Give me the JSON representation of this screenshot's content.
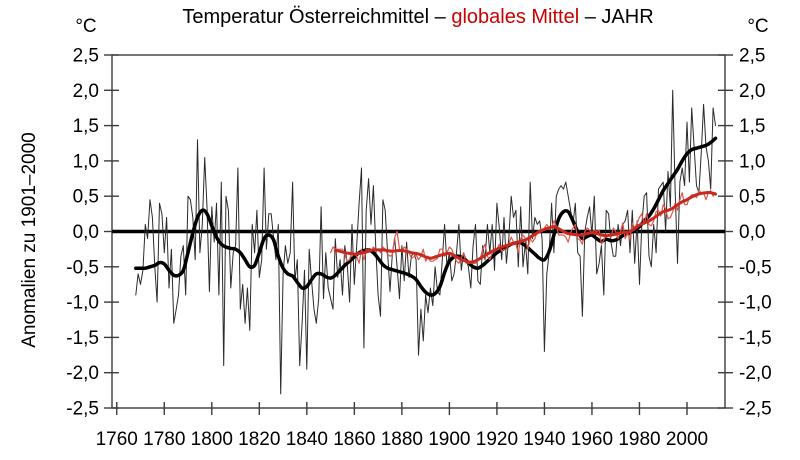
{
  "title": {
    "part1": "Temperatur Österreichmittel – ",
    "part2_red": "globales Mittel",
    "part3": " – JAHR"
  },
  "axes": {
    "unit_left": "°C",
    "unit_right": "°C",
    "y_axis_title": "Anomalien zu 1901–2000",
    "y_tick_labels": [
      "2,5",
      "2,0",
      "1,5",
      "1,0",
      "0,5",
      "0,0",
      "-0,5",
      "-1,0",
      "-1,5",
      "-2,0",
      "-2,5"
    ],
    "y_tick_values": [
      2.5,
      2.0,
      1.5,
      1.0,
      0.5,
      0.0,
      -0.5,
      -1.0,
      -1.5,
      -2.0,
      -2.5
    ],
    "x_tick_labels": [
      "1760",
      "1780",
      "1800",
      "1820",
      "1840",
      "1860",
      "1880",
      "1900",
      "1920",
      "1940",
      "1960",
      "1980",
      "2000"
    ],
    "x_tick_values": [
      1760,
      1780,
      1800,
      1820,
      1840,
      1860,
      1880,
      1900,
      1920,
      1940,
      1960,
      1980,
      2000
    ]
  },
  "colors": {
    "title_red": "#cc0000",
    "austria_annual": "#2a2a2a",
    "austria_smooth": "#000000",
    "global_annual": "#e0564a",
    "global_smooth": "#c8281e",
    "zero_line": "#000000",
    "frame": "#3c3c3c"
  },
  "chart_data": {
    "type": "line",
    "title": "Temperatur Österreichmittel – globales Mittel – JAHR",
    "ylabel": "Anomalien zu 1901–2000 (°C)",
    "ylim": [
      -2.5,
      2.5
    ],
    "xlim": [
      1758,
      2016
    ],
    "grid": false,
    "legend_position": "none (series identified by title colors)",
    "zero_line": true,
    "series": [
      {
        "id": "austria-annual",
        "name": "Temperatur Österreichmittel (Jahreswerte)",
        "color": "#2a2a2a",
        "width": 1,
        "smooth": false,
        "start_year": 1768,
        "step": 1,
        "values": [
          -0.9,
          -0.6,
          -0.75,
          -0.55,
          0.1,
          -0.1,
          0.45,
          0.2,
          -0.5,
          -1.0,
          0.4,
          0.25,
          -0.3,
          0.2,
          -0.8,
          -0.25,
          -1.3,
          -1.1,
          -0.9,
          -0.35,
          -0.2,
          -0.9,
          0.5,
          0.45,
          0.2,
          -0.4,
          1.3,
          -0.3,
          0.1,
          1.05,
          0.35,
          -0.85,
          0.35,
          -0.15,
          0.4,
          -0.9,
          0.7,
          -1.9,
          0.5,
          0.3,
          -0.8,
          -0.3,
          -0.2,
          0.9,
          -1.1,
          -0.75,
          -1.3,
          -0.8,
          -1.4,
          0.1,
          -0.3,
          0.3,
          -0.65,
          -0.4,
          0.9,
          -0.25,
          0.25,
          0.25,
          -0.1,
          -0.4,
          0.1,
          -2.3,
          -0.6,
          -0.2,
          -0.45,
          -0.3,
          0.7,
          -0.7,
          -0.4,
          -1.9,
          -1.3,
          -0.55,
          -1.95,
          -0.25,
          -0.7,
          -1.1,
          -1.3,
          -0.95,
          0.35,
          -0.95,
          -0.3,
          -0.8,
          -0.95,
          -1.1,
          -0.1,
          -0.65,
          -0.4,
          -0.9,
          -0.2,
          -0.45,
          -1.0,
          0.1,
          -0.75,
          -0.2,
          0.4,
          0.9,
          -1.65,
          0.3,
          0.75,
          0.1,
          0.65,
          -0.2,
          -0.9,
          -1.2,
          0.45,
          0.3,
          -0.3,
          -0.85,
          -0.3,
          -0.1,
          -0.5,
          -0.95,
          -0.2,
          -0.7,
          -0.15,
          -0.65,
          -0.35,
          -0.3,
          -0.4,
          -1.75,
          -1.1,
          -1.55,
          -0.9,
          -1.15,
          -0.8,
          -1.05,
          -0.5,
          -0.85,
          -0.9,
          -0.4,
          0.1,
          -0.5,
          -0.3,
          -0.7,
          -0.6,
          -0.3,
          0.1,
          -0.55,
          -0.3,
          -0.4,
          -0.5,
          -0.8,
          -0.2,
          0.1,
          -0.7,
          -0.75,
          -0.2,
          -0.4,
          0.1,
          -0.3,
          0.1,
          -0.55,
          0.4,
          0.05,
          -0.4,
          0.2,
          -0.45,
          -0.1,
          0.5,
          0.2,
          0.3,
          -0.5,
          0.35,
          -0.5,
          -0.15,
          -0.6,
          0.7,
          -0.1,
          0.2,
          0.1,
          0.15,
          -0.1,
          -1.7,
          -0.6,
          -0.3,
          0.4,
          -0.3,
          0.5,
          0.6,
          0.65,
          0.6,
          0.7,
          0.5,
          0.3,
          0.1,
          0.4,
          -0.3,
          -0.35,
          -1.2,
          0.0,
          0.2,
          0.35,
          -0.05,
          0.5,
          -0.6,
          -0.45,
          -0.2,
          -0.9,
          0.3,
          0.25,
          -0.15,
          -0.35,
          -0.35,
          0.1,
          -0.2,
          0.1,
          0.15,
          0.3,
          -0.3,
          0.3,
          -0.45,
          0.15,
          -0.75,
          0.1,
          0.5,
          0.55,
          -0.35,
          -0.5,
          0.1,
          -0.3,
          0.6,
          0.65,
          0.7,
          0.0,
          0.85,
          0.35,
          2.0,
          0.6,
          -0.45,
          0.7,
          0.9,
          0.65,
          1.55,
          0.7,
          1.75,
          1.2,
          0.65,
          0.55,
          1.1,
          1.8,
          1.2,
          1.0,
          0.6,
          1.75,
          1.5
        ]
      },
      {
        "id": "austria-smooth",
        "name": "Temperatur Österreichmittel (geglättet)",
        "color": "#000000",
        "width": 3.5,
        "smooth": true,
        "start_year": 1768,
        "step": 2,
        "values": [
          -0.52,
          -0.52,
          -0.52,
          -0.5,
          -0.48,
          -0.44,
          -0.46,
          -0.55,
          -0.62,
          -0.62,
          -0.55,
          -0.3,
          -0.02,
          0.2,
          0.3,
          0.25,
          0.08,
          -0.08,
          -0.18,
          -0.22,
          -0.24,
          -0.25,
          -0.3,
          -0.4,
          -0.5,
          -0.48,
          -0.3,
          -0.1,
          -0.05,
          -0.12,
          -0.35,
          -0.52,
          -0.6,
          -0.63,
          -0.72,
          -0.8,
          -0.78,
          -0.68,
          -0.6,
          -0.6,
          -0.64,
          -0.66,
          -0.62,
          -0.55,
          -0.48,
          -0.42,
          -0.36,
          -0.3,
          -0.27,
          -0.26,
          -0.3,
          -0.38,
          -0.47,
          -0.52,
          -0.54,
          -0.56,
          -0.58,
          -0.6,
          -0.63,
          -0.68,
          -0.78,
          -0.86,
          -0.9,
          -0.88,
          -0.78,
          -0.58,
          -0.42,
          -0.36,
          -0.35,
          -0.38,
          -0.44,
          -0.5,
          -0.52,
          -0.48,
          -0.42,
          -0.36,
          -0.3,
          -0.26,
          -0.22,
          -0.18,
          -0.16,
          -0.16,
          -0.2,
          -0.26,
          -0.32,
          -0.38,
          -0.4,
          -0.28,
          -0.05,
          0.18,
          0.28,
          0.28,
          0.15,
          0.0,
          -0.1,
          -0.07,
          -0.05,
          -0.1,
          -0.14,
          -0.11,
          -0.13,
          -0.12,
          -0.08,
          -0.04,
          -0.02,
          0.02,
          0.07,
          0.15,
          0.22,
          0.32,
          0.45,
          0.58,
          0.68,
          0.78,
          0.88,
          1.0,
          1.1,
          1.16,
          1.18,
          1.2,
          1.22,
          1.26,
          1.32
        ]
      },
      {
        "id": "global-annual",
        "name": "globales Mittel (Jahreswerte)",
        "color": "#e0564a",
        "width": 1.2,
        "smooth": false,
        "start_year": 1850,
        "step": 1,
        "values": [
          -0.3,
          -0.22,
          -0.25,
          -0.25,
          -0.25,
          -0.25,
          -0.33,
          -0.42,
          -0.4,
          -0.28,
          -0.32,
          -0.35,
          -0.45,
          -0.25,
          -0.4,
          -0.25,
          -0.25,
          -0.28,
          -0.22,
          -0.25,
          -0.25,
          -0.3,
          -0.22,
          -0.25,
          -0.32,
          -0.35,
          -0.33,
          -0.08,
          0.0,
          -0.25,
          -0.28,
          -0.22,
          -0.25,
          -0.3,
          -0.38,
          -0.36,
          -0.33,
          -0.4,
          -0.35,
          -0.25,
          -0.42,
          -0.35,
          -0.42,
          -0.42,
          -0.4,
          -0.38,
          -0.25,
          -0.25,
          -0.35,
          -0.3,
          -0.22,
          -0.25,
          -0.35,
          -0.42,
          -0.45,
          -0.38,
          -0.3,
          -0.45,
          -0.45,
          -0.45,
          -0.45,
          -0.45,
          -0.4,
          -0.38,
          -0.25,
          -0.18,
          -0.35,
          -0.4,
          -0.3,
          -0.25,
          -0.25,
          -0.18,
          -0.28,
          -0.25,
          -0.25,
          -0.18,
          -0.08,
          -0.15,
          -0.18,
          -0.3,
          -0.1,
          -0.05,
          -0.1,
          -0.25,
          -0.1,
          -0.15,
          -0.1,
          0.0,
          0.02,
          0.0,
          0.05,
          0.1,
          0.05,
          0.05,
          0.15,
          0.08,
          -0.05,
          -0.05,
          -0.05,
          -0.08,
          -0.15,
          -0.02,
          0.05,
          0.1,
          -0.1,
          -0.12,
          -0.18,
          0.0,
          0.05,
          0.02,
          -0.02,
          0.02,
          0.0,
          0.02,
          -0.18,
          -0.12,
          -0.05,
          -0.05,
          -0.08,
          0.05,
          0.0,
          -0.1,
          0.0,
          0.12,
          -0.1,
          -0.02,
          -0.12,
          0.12,
          0.05,
          0.12,
          0.2,
          0.25,
          0.1,
          0.25,
          0.1,
          0.08,
          0.15,
          0.28,
          0.3,
          0.22,
          0.38,
          0.32,
          0.18,
          0.2,
          0.28,
          0.4,
          0.3,
          0.45,
          0.55,
          0.38,
          0.38,
          0.48,
          0.52,
          0.52,
          0.48,
          0.58,
          0.55,
          0.55,
          0.45,
          0.55,
          0.58,
          0.5,
          0.55
        ]
      },
      {
        "id": "global-smooth",
        "name": "globales Mittel (geglättet)",
        "color": "#c8281e",
        "width": 3,
        "smooth": true,
        "start_year": 1852,
        "step": 2,
        "values": [
          -0.27,
          -0.28,
          -0.3,
          -0.31,
          -0.32,
          -0.31,
          -0.3,
          -0.28,
          -0.26,
          -0.26,
          -0.26,
          -0.27,
          -0.28,
          -0.27,
          -0.27,
          -0.28,
          -0.3,
          -0.31,
          -0.33,
          -0.36,
          -0.38,
          -0.36,
          -0.34,
          -0.32,
          -0.31,
          -0.34,
          -0.38,
          -0.41,
          -0.43,
          -0.43,
          -0.4,
          -0.36,
          -0.32,
          -0.28,
          -0.25,
          -0.22,
          -0.2,
          -0.18,
          -0.16,
          -0.14,
          -0.12,
          -0.08,
          -0.04,
          0.0,
          0.03,
          0.05,
          0.07,
          0.04,
          0.0,
          -0.03,
          -0.04,
          -0.05,
          -0.05,
          -0.03,
          -0.02,
          -0.03,
          -0.05,
          -0.06,
          -0.05,
          -0.04,
          -0.02,
          -0.01,
          0.0,
          0.04,
          0.09,
          0.12,
          0.15,
          0.19,
          0.24,
          0.28,
          0.3,
          0.33,
          0.38,
          0.42,
          0.45,
          0.49,
          0.52,
          0.54,
          0.55,
          0.55,
          0.53
        ]
      }
    ]
  }
}
